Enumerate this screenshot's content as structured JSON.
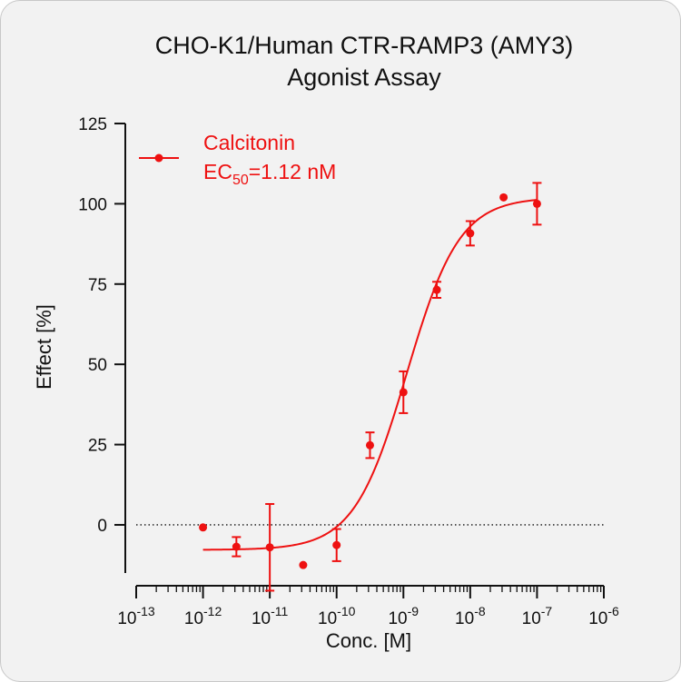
{
  "chart_data": {
    "type": "scatter",
    "title_lines": [
      "CHO-K1/Human CTR-RAMP3 (AMY3)",
      "Agonist Assay"
    ],
    "xlabel": "Conc. [M]",
    "ylabel": "Effect  [%]",
    "x_scale": "log",
    "xlim": [
      1e-13,
      1e-06
    ],
    "ylim": [
      -15,
      125
    ],
    "x_ticks": [
      1e-13,
      1e-12,
      1e-11,
      1e-10,
      1e-09,
      1e-08,
      1e-07,
      1e-06
    ],
    "x_tick_labels": [
      {
        "base": "10",
        "exp": "-13"
      },
      {
        "base": "10",
        "exp": "-12"
      },
      {
        "base": "10",
        "exp": "-11"
      },
      {
        "base": "10",
        "exp": "-10"
      },
      {
        "base": "10",
        "exp": "-9"
      },
      {
        "base": "10",
        "exp": "-8"
      },
      {
        "base": "10",
        "exp": "-7"
      },
      {
        "base": "10",
        "exp": "-6"
      }
    ],
    "y_ticks": [
      0,
      25,
      50,
      75,
      100,
      125
    ],
    "y_tick_labels": [
      "0",
      "25",
      "50",
      "75",
      "100",
      "125"
    ],
    "zero_reference_line": true,
    "legend_position": "top-left",
    "series": [
      {
        "name": "Calcitonin",
        "color": "#ee1111",
        "points": [
          {
            "x": 1e-12,
            "y": -0.8,
            "err": 0
          },
          {
            "x": 3.16e-12,
            "y": -6.8,
            "err": 3.0
          },
          {
            "x": 1e-11,
            "y": -7.0,
            "err": 13.5
          },
          {
            "x": 3.16e-11,
            "y": -12.5,
            "err": 0
          },
          {
            "x": 1e-10,
            "y": -6.3,
            "err": 5.0
          },
          {
            "x": 3.16e-10,
            "y": 24.8,
            "err": 4.0
          },
          {
            "x": 1e-09,
            "y": 41.3,
            "err": 6.5
          },
          {
            "x": 3.16e-09,
            "y": 73.2,
            "err": 2.5
          },
          {
            "x": 1e-08,
            "y": 90.8,
            "err": 3.8
          },
          {
            "x": 3.16e-08,
            "y": 102.0,
            "err": 0
          },
          {
            "x": 1e-07,
            "y": 100.0,
            "err": 6.5
          }
        ],
        "fit": {
          "model": "4PL",
          "bottom": -7.8,
          "top": 102.0,
          "ec50": 1.12e-09,
          "hill": 1.1
        }
      }
    ],
    "legend": {
      "entry_name": "Calcitonin",
      "ec50_prefix": "EC",
      "ec50_subscript": "50",
      "ec50_value": "=1.12 nM"
    }
  }
}
